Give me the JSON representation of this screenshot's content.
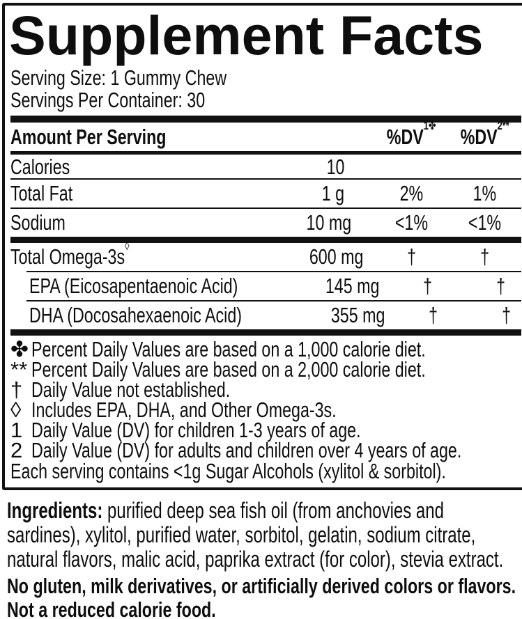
{
  "panel": {
    "title": "Supplement Facts",
    "serving_size_label": "Serving Size:",
    "serving_size_value": "1 Gummy Chew",
    "servings_label": "Servings Per Container:",
    "servings_value": "30"
  },
  "table": {
    "header": {
      "amount_label": "Amount Per Serving",
      "dv1": "%DV",
      "dv1_sup": "1✤",
      "dv2": "%DV",
      "dv2_sup": "2**"
    },
    "rows": [
      {
        "name": "Calories",
        "sup": "",
        "amount": "10",
        "dv1": "",
        "dv2": ""
      },
      {
        "name": "Total Fat",
        "sup": "",
        "amount": "1 g",
        "dv1": "2%",
        "dv2": "1%"
      },
      {
        "name": "Sodium",
        "sup": "",
        "amount": "10 mg",
        "dv1": "<1%",
        "dv2": "<1%"
      },
      {
        "name": "Total Omega-3s",
        "sup": "◊",
        "amount": "600 mg",
        "dv1": "†",
        "dv2": "†"
      },
      {
        "name": "EPA (Eicosapentaenoic Acid)",
        "sup": "",
        "amount": "145 mg",
        "dv1": "†",
        "dv2": "†"
      },
      {
        "name": "DHA (Docosahexaenoic Acid)",
        "sup": "",
        "amount": "355 mg",
        "dv1": "†",
        "dv2": "†"
      }
    ]
  },
  "footnotes": [
    {
      "marker": "✤",
      "text": "Percent Daily Values are based on a 1,000 calorie diet."
    },
    {
      "marker": "**",
      "text": "Percent Daily Values are based on a 2,000 calorie diet."
    },
    {
      "marker": "†",
      "text": "Daily Value not established."
    },
    {
      "marker": "◊",
      "text": "Includes EPA, DHA, and Other Omega-3s."
    },
    {
      "marker": "1",
      "text": "Daily Value (DV) for children 1-3 years of age."
    },
    {
      "marker": "2",
      "text": "Daily Value (DV) for adults and children over 4 years of age."
    }
  ],
  "sugar_note": "Each serving contains <1g Sugar Alcohols (xylitol & sorbitol).",
  "ingredients": {
    "label": "Ingredients:",
    "text": " purified deep sea fish oil (from anchovies and sardines), xylitol, purified water, sorbitol, gelatin, sodium citrate, natural flavors, malic acid, paprika extract (for color), stevia extract."
  },
  "claims": [
    "No gluten, milk derivatives, or artificially derived colors or flavors.",
    "Not a reduced calorie food."
  ],
  "colors": {
    "ink": "#111111",
    "background": "#ffffff"
  }
}
